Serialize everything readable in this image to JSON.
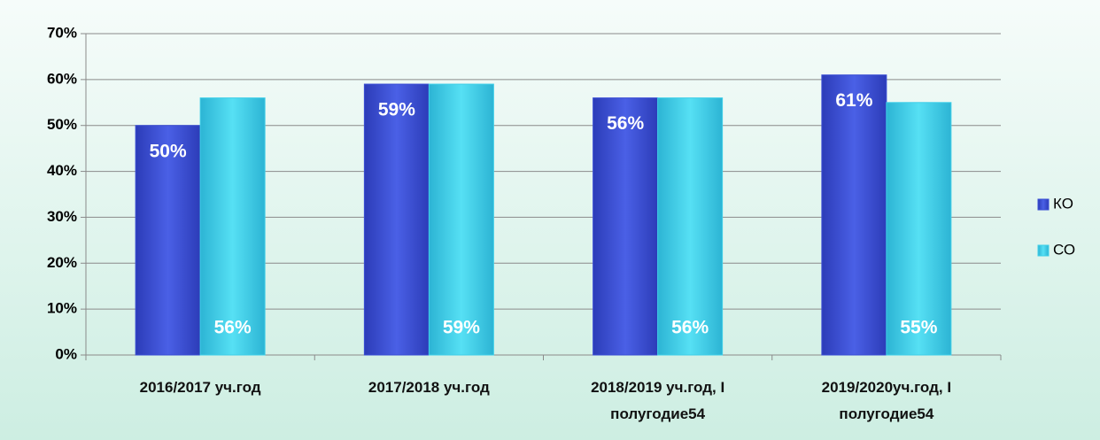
{
  "chart_data": {
    "type": "bar",
    "categories": [
      "2016/2017 уч.год",
      "2017/2018 уч.год",
      "2018/2019 уч.год, I полугодие54",
      "2019/2020уч.год, I полугодие54"
    ],
    "series": [
      {
        "name": "КО",
        "color": "#3a4ed4",
        "values": [
          50,
          59,
          56,
          61
        ],
        "value_labels": [
          "50%",
          "59%",
          "56%",
          "61%"
        ]
      },
      {
        "name": "СО",
        "color": "#3fcfe8",
        "values": [
          56,
          59,
          56,
          55
        ],
        "value_labels": [
          "56%",
          "59%",
          "56%",
          "55%"
        ]
      }
    ],
    "ylim": [
      0,
      70
    ],
    "yticks": [
      {
        "value": 0,
        "label": "0%"
      },
      {
        "value": 10,
        "label": "10%"
      },
      {
        "value": 20,
        "label": "20%"
      },
      {
        "value": 30,
        "label": "30%"
      },
      {
        "value": 40,
        "label": "40%"
      },
      {
        "value": 50,
        "label": "50%"
      },
      {
        "value": 60,
        "label": "60%"
      },
      {
        "value": 70,
        "label": "70%"
      }
    ],
    "grid": true,
    "legend": "right"
  }
}
